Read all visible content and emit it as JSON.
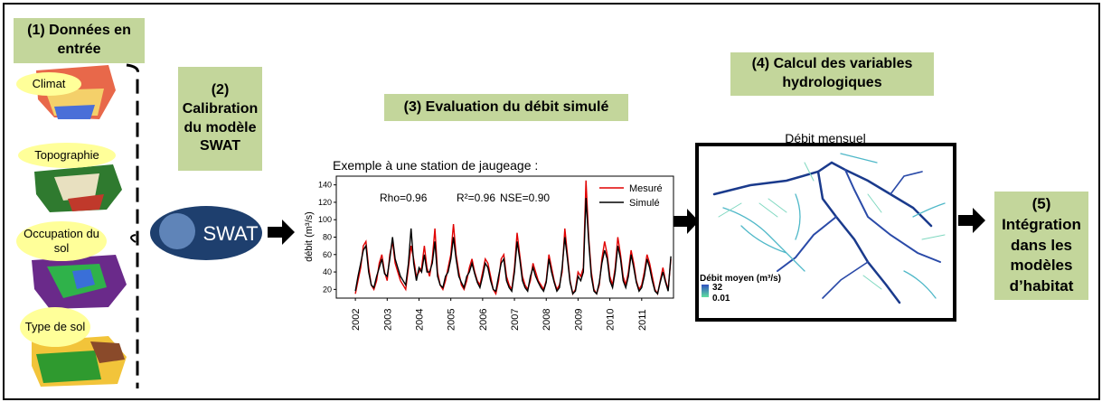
{
  "steps": [
    {
      "label": "(1) Données en entrée"
    },
    {
      "label": "(2) Calibration du modèle SWAT"
    },
    {
      "label": "(3) Evaluation du débit simulé"
    },
    {
      "label": "(4) Calcul des variables hydrologiques"
    },
    {
      "label": "(5) Intégration dans les modèles d’habitat"
    }
  ],
  "inputs": [
    "Climat",
    "Topographie",
    "Occupation du sol",
    "Type de sol"
  ],
  "swat_logo": "SWAT",
  "chart": {
    "type": "line",
    "title": "Exemple à une station de jaugeage :",
    "y_label": "débit (m³/s)",
    "annotations": [
      "Rho=0.96",
      "R²=0.96",
      "NSE=0.90"
    ],
    "ylim": [
      10,
      150
    ],
    "yticks": [
      20,
      40,
      60,
      80,
      100,
      120,
      140
    ],
    "xlim": [
      2001.4,
      2012
    ],
    "xticks": [
      2002,
      2003,
      2004,
      2005,
      2006,
      2007,
      2008,
      2009,
      2010,
      2011
    ],
    "series": [
      {
        "name": "Mesuré",
        "color": "#e00000",
        "values": [
          15,
          30,
          45,
          70,
          75,
          45,
          25,
          20,
          30,
          50,
          60,
          40,
          30,
          60,
          75,
          50,
          40,
          30,
          25,
          20,
          45,
          70,
          55,
          35,
          40,
          45,
          70,
          45,
          35,
          55,
          90,
          40,
          25,
          20,
          30,
          45,
          60,
          95,
          60,
          40,
          25,
          20,
          30,
          45,
          55,
          40,
          30,
          25,
          40,
          55,
          50,
          35,
          20,
          15,
          30,
          55,
          60,
          35,
          25,
          20,
          45,
          85,
          60,
          35,
          25,
          20,
          30,
          50,
          40,
          30,
          25,
          20,
          30,
          60,
          45,
          30,
          20,
          25,
          40,
          90,
          60,
          30,
          15,
          20,
          40,
          35,
          45,
          145,
          80,
          40,
          20,
          15,
          25,
          55,
          75,
          60,
          35,
          25,
          45,
          80,
          60,
          35,
          25,
          40,
          65,
          50,
          30,
          20,
          25,
          40,
          60,
          50,
          35,
          20,
          15,
          30,
          45,
          30,
          20,
          55
        ]
      },
      {
        "name": "Simulé",
        "color": "#000000",
        "values": [
          18,
          35,
          50,
          65,
          70,
          40,
          25,
          22,
          35,
          45,
          55,
          38,
          35,
          55,
          80,
          55,
          45,
          35,
          30,
          25,
          50,
          90,
          50,
          30,
          45,
          40,
          60,
          40,
          40,
          50,
          75,
          35,
          25,
          22,
          35,
          40,
          55,
          80,
          55,
          35,
          28,
          22,
          35,
          40,
          50,
          38,
          28,
          22,
          35,
          50,
          45,
          30,
          20,
          18,
          35,
          50,
          55,
          30,
          22,
          18,
          40,
          75,
          55,
          30,
          22,
          18,
          35,
          45,
          35,
          28,
          22,
          18,
          28,
          55,
          40,
          28,
          18,
          22,
          45,
          80,
          55,
          28,
          15,
          18,
          35,
          30,
          40,
          125,
          75,
          35,
          18,
          15,
          28,
          50,
          65,
          55,
          30,
          22,
          40,
          70,
          55,
          30,
          22,
          35,
          60,
          45,
          28,
          18,
          22,
          35,
          55,
          45,
          30,
          18,
          15,
          28,
          40,
          28,
          18,
          58
        ]
      }
    ]
  },
  "map": {
    "title": "Débit mensuel",
    "legend_title": "Débit moyen (m³/s)",
    "legend_max": 32,
    "legend_min": 0.01
  }
}
